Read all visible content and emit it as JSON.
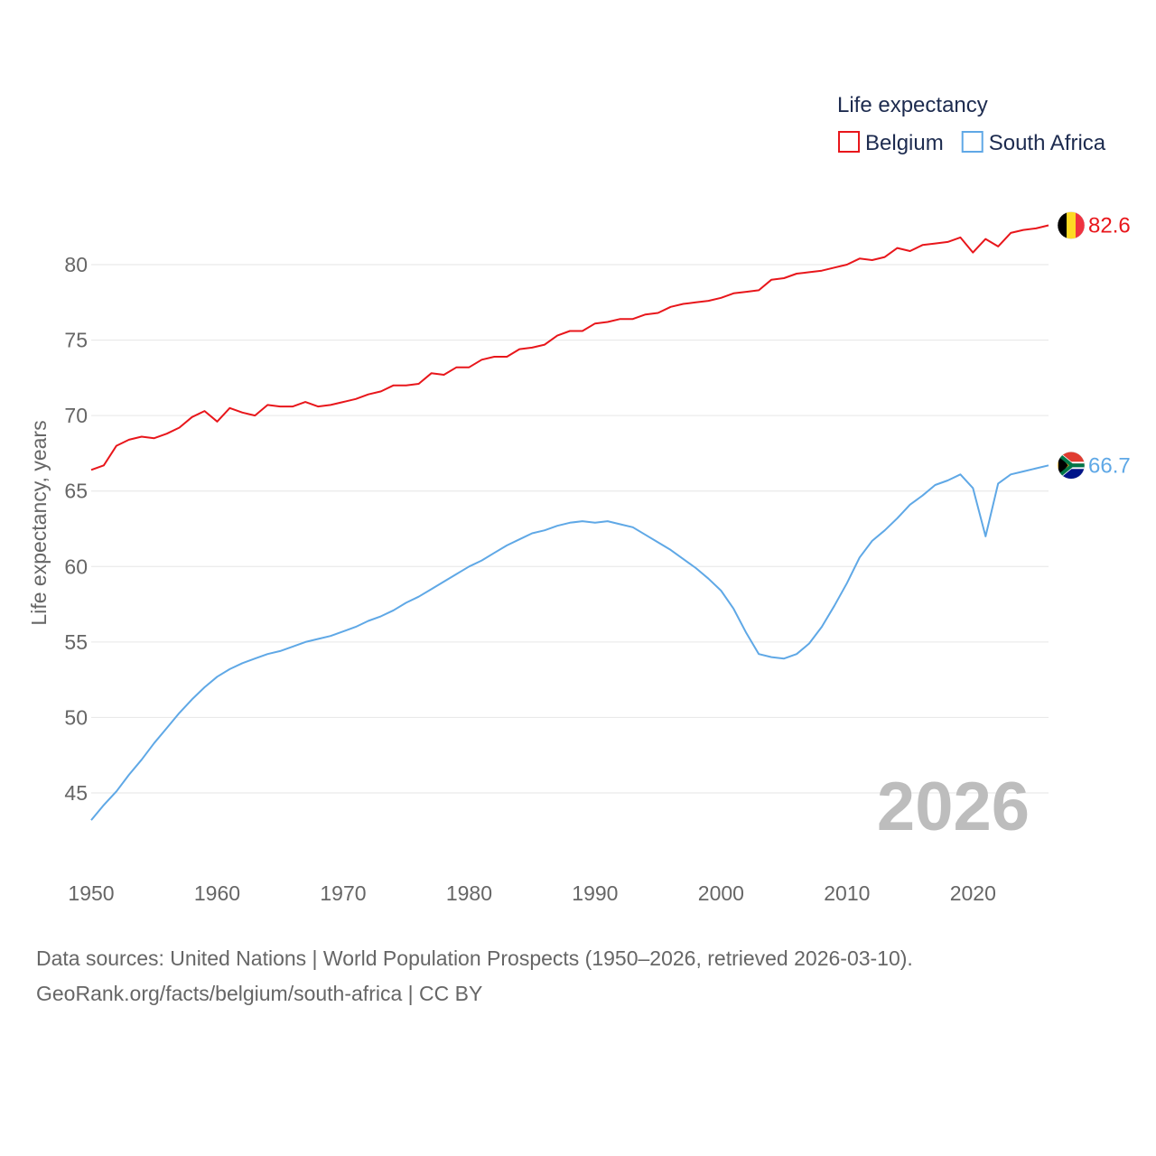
{
  "chart_data": {
    "type": "line",
    "title": "",
    "legend_title": "Life expectancy",
    "legend_position": "top-right",
    "ylabel": "Life expectancy, years",
    "xlabel": "",
    "xlim": [
      1950,
      2026
    ],
    "ylim": [
      41.5,
      84
    ],
    "x_ticks": [
      1950,
      1960,
      1970,
      1980,
      1990,
      2000,
      2010,
      2020
    ],
    "y_ticks": [
      45,
      50,
      55,
      60,
      65,
      70,
      75,
      80
    ],
    "grid": true,
    "year_label": "2026",
    "x": [
      1950,
      1951,
      1952,
      1953,
      1954,
      1955,
      1956,
      1957,
      1958,
      1959,
      1960,
      1961,
      1962,
      1963,
      1964,
      1965,
      1966,
      1967,
      1968,
      1969,
      1970,
      1971,
      1972,
      1973,
      1974,
      1975,
      1976,
      1977,
      1978,
      1979,
      1980,
      1981,
      1982,
      1983,
      1984,
      1985,
      1986,
      1987,
      1988,
      1989,
      1990,
      1991,
      1992,
      1993,
      1994,
      1995,
      1996,
      1997,
      1998,
      1999,
      2000,
      2001,
      2002,
      2003,
      2004,
      2005,
      2006,
      2007,
      2008,
      2009,
      2010,
      2011,
      2012,
      2013,
      2014,
      2015,
      2016,
      2017,
      2018,
      2019,
      2020,
      2021,
      2022,
      2023,
      2024,
      2025,
      2026
    ],
    "series": [
      {
        "name": "Belgium",
        "color": "#e8161b",
        "end_label": "82.6",
        "flag": "belgium-flag",
        "values": [
          66.4,
          66.7,
          68.0,
          68.4,
          68.6,
          68.5,
          68.8,
          69.2,
          69.9,
          70.3,
          69.6,
          70.5,
          70.2,
          70.0,
          70.7,
          70.6,
          70.6,
          70.9,
          70.6,
          70.7,
          70.9,
          71.1,
          71.4,
          71.6,
          72.0,
          72.0,
          72.1,
          72.8,
          72.7,
          73.2,
          73.2,
          73.7,
          73.9,
          73.9,
          74.4,
          74.5,
          74.7,
          75.3,
          75.6,
          75.6,
          76.1,
          76.2,
          76.4,
          76.4,
          76.7,
          76.8,
          77.2,
          77.4,
          77.5,
          77.6,
          77.8,
          78.1,
          78.2,
          78.3,
          79.0,
          79.1,
          79.4,
          79.5,
          79.6,
          79.8,
          80.0,
          80.4,
          80.3,
          80.5,
          81.1,
          80.9,
          81.3,
          81.4,
          81.5,
          81.8,
          80.8,
          81.7,
          81.2,
          82.1,
          82.3,
          82.4,
          82.6
        ]
      },
      {
        "name": "South Africa",
        "color": "#5fa8e6",
        "end_label": "66.7",
        "flag": "south-africa-flag",
        "values": [
          43.2,
          44.2,
          45.1,
          46.2,
          47.2,
          48.3,
          49.3,
          50.3,
          51.2,
          52.0,
          52.7,
          53.2,
          53.6,
          53.9,
          54.2,
          54.4,
          54.7,
          55.0,
          55.2,
          55.4,
          55.7,
          56.0,
          56.4,
          56.7,
          57.1,
          57.6,
          58.0,
          58.5,
          59.0,
          59.5,
          60.0,
          60.4,
          60.9,
          61.4,
          61.8,
          62.2,
          62.4,
          62.7,
          62.9,
          63.0,
          62.9,
          63.0,
          62.8,
          62.6,
          62.1,
          61.6,
          61.1,
          60.5,
          59.9,
          59.2,
          58.4,
          57.2,
          55.6,
          54.2,
          54.0,
          53.9,
          54.2,
          54.9,
          56.0,
          57.4,
          58.9,
          60.6,
          61.7,
          62.4,
          63.2,
          64.1,
          64.7,
          65.4,
          65.7,
          66.1,
          65.2,
          62.0,
          65.5,
          66.1,
          66.3,
          66.5,
          66.7
        ]
      }
    ]
  },
  "footer": {
    "line1": "Data sources: United Nations | World Population Prospects (1950–2026, retrieved 2026-03-10).",
    "line2": "GeoRank.org/facts/belgium/south-africa | CC BY"
  }
}
